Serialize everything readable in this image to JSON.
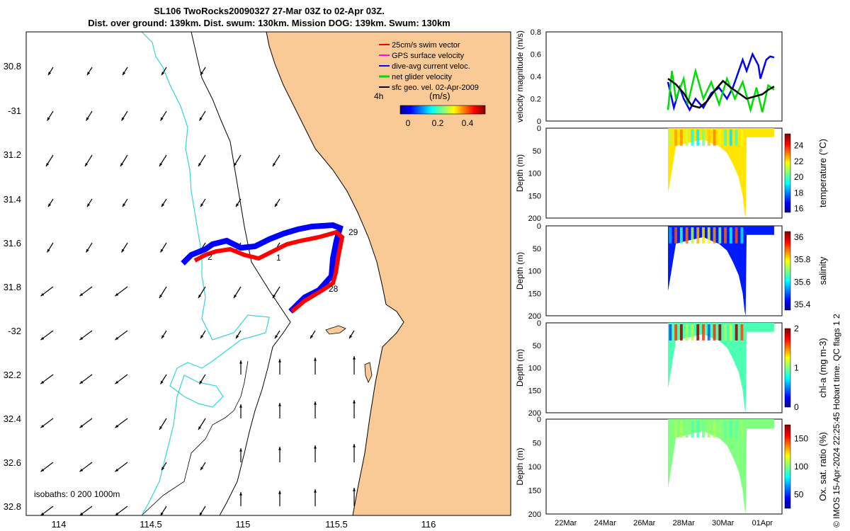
{
  "title": {
    "line1": "SL106 TwoRocks20090327 27-Mar 03Z to 02-Apr 03Z.",
    "line2": "Dist. over ground: 139km. Dist. swum: 130km. Mission DOG: 139km. Swum: 130km"
  },
  "map": {
    "lat_ticks": [
      "30.8",
      "-31",
      "31.2",
      "31.4",
      "31.6",
      "31.8",
      "-32",
      "32.2",
      "32.4",
      "32.6",
      "32.8"
    ],
    "lon_ticks": [
      "114",
      "114.5",
      "115",
      "115.5",
      "116"
    ],
    "isobaths_label": "isobaths: 0   200  1000m",
    "legend": [
      {
        "label": "25cm/s swim vector",
        "color": "#ff0000"
      },
      {
        "label": "GPS surface velocity",
        "color": "#ff00ff"
      },
      {
        "label": "dive-avg current veloc.",
        "color": "#0000ff"
      },
      {
        "label": "net glider velocity",
        "color": "#00dd00"
      },
      {
        "label": "sfc geo. vel. 02-Apr-2009",
        "color": "#000000"
      }
    ],
    "legend_extra": "4h",
    "colorbar_unit": "(m/s)",
    "colorbar_ticks": [
      "0",
      "0.2",
      "0.4"
    ],
    "track_labels": [
      "2",
      "1",
      "29",
      "28"
    ],
    "colors": {
      "land": "#f9c996",
      "coast_isobath": "#000000",
      "isobath_1000": "#33d6d6",
      "track_blue": "#0000ff",
      "track_red": "#ff0000"
    }
  },
  "chart_data": [
    {
      "type": "line",
      "ylabel": "velocity magnitude (m/s)",
      "ylim": [
        0,
        0.8
      ],
      "yticks": [
        "0",
        "0.2",
        "0.4",
        "0.6",
        "0.8"
      ],
      "series": [
        {
          "color": "#0000ff",
          "x": [
            "27.2",
            "27.5",
            "27.8",
            "28.0",
            "28.3",
            "28.6",
            "29.0",
            "29.4",
            "29.8",
            "30.2",
            "30.5",
            "30.8",
            "31.0",
            "31.2",
            "31.5",
            "31.8",
            "31.9",
            "32.2",
            "32.4",
            "32.6"
          ],
          "values": [
            0.35,
            0.12,
            0.3,
            0.2,
            0.1,
            0.2,
            0.12,
            0.25,
            0.3,
            0.2,
            0.3,
            0.45,
            0.55,
            0.45,
            0.6,
            0.5,
            0.38,
            0.55,
            0.58,
            0.57
          ]
        },
        {
          "color": "#00dd00",
          "x": [
            "27.2",
            "27.4",
            "27.6",
            "28.0",
            "28.2",
            "28.6",
            "29.0",
            "29.4",
            "29.8",
            "30.2",
            "30.6",
            "31.0",
            "31.4",
            "31.7",
            "32.0",
            "32.3",
            "32.6"
          ],
          "values": [
            0.1,
            0.45,
            0.2,
            0.38,
            0.15,
            0.45,
            0.2,
            0.35,
            0.15,
            0.38,
            0.2,
            0.35,
            0.1,
            0.3,
            0.08,
            0.32,
            0.28
          ]
        },
        {
          "color": "#000000",
          "x": [
            "27.2",
            "27.6",
            "28.0",
            "28.4",
            "28.8",
            "29.2",
            "29.6",
            "30.0",
            "30.4",
            "30.8",
            "31.2",
            "31.6",
            "32.0",
            "32.3",
            "32.6"
          ],
          "values": [
            0.38,
            0.33,
            0.25,
            0.14,
            0.12,
            0.18,
            0.28,
            0.36,
            0.3,
            0.25,
            0.2,
            0.22,
            0.24,
            0.28,
            0.31
          ]
        }
      ]
    },
    {
      "type": "heatmap",
      "ylabel": "Depth (m)",
      "clabel": "temperature (°C)",
      "ylim": [
        200,
        0
      ],
      "yticks": [
        "0",
        "50",
        "100",
        "150",
        "200"
      ],
      "cticks": [
        "16",
        "18",
        "20",
        "22",
        "24"
      ],
      "crange": [
        15.5,
        25.5
      ]
    },
    {
      "type": "heatmap",
      "ylabel": "Depth (m)",
      "clabel": "salinity",
      "ylim": [
        200,
        0
      ],
      "yticks": [
        "0",
        "50",
        "100",
        "150",
        "200"
      ],
      "cticks": [
        "35.4",
        "35.6",
        "35.8",
        "36"
      ],
      "crange": [
        35.35,
        36.05
      ]
    },
    {
      "type": "heatmap",
      "ylabel": "Depth (m)",
      "clabel": "chl-a (mg m-3)",
      "ylim": [
        200,
        0
      ],
      "yticks": [
        "0",
        "50",
        "100",
        "150",
        "200"
      ],
      "cticks": [
        "0",
        "1",
        "2"
      ],
      "crange": [
        0,
        2
      ]
    },
    {
      "type": "heatmap",
      "ylabel": "Depth (m)",
      "clabel": "Ox. sat. ratio (%)",
      "ylim": [
        200,
        0
      ],
      "yticks": [
        "0",
        "50",
        "100",
        "150",
        "200"
      ],
      "cticks": [
        "50",
        "100",
        "150"
      ],
      "crange": [
        25,
        175
      ]
    }
  ],
  "time_ticks": [
    "22Mar",
    "24Mar",
    "26Mar",
    "28Mar",
    "30Mar",
    "01Apr"
  ],
  "footer_vertical": "© IMOS 15-Apr-2024 22:25:45 Hobart time. QC flags 1  2"
}
